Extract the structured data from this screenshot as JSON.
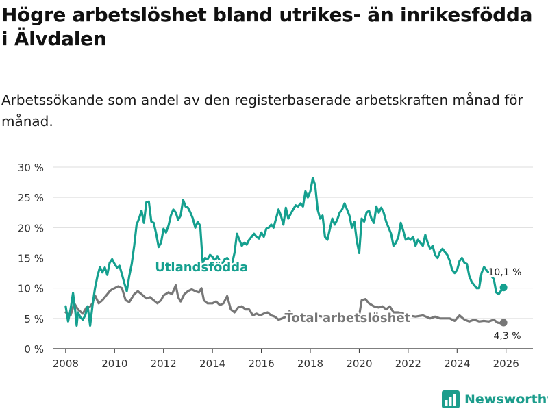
{
  "title": "Högre arbetslöshet bland utrikes- än inrikesfödda i Älvdalen",
  "subtitle": "Arbetssökande som andel av den registerbaserade arbetskraften månad för månad.",
  "brand": "Newsworthy",
  "colors": {
    "foreign": "#15a08f",
    "total": "#777777",
    "grid": "#dddddd",
    "axis": "#333333"
  },
  "chart_data": {
    "type": "line",
    "title": "Högre arbetslöshet bland utrikes- än inrikesfödda i Älvdalen",
    "xlabel": "",
    "ylabel": "",
    "xlim": [
      2007.5,
      2027.1
    ],
    "ylim": [
      0,
      30
    ],
    "y_ticks": [
      0,
      5,
      10,
      15,
      20,
      25,
      30
    ],
    "y_tick_labels": [
      "0 %",
      "5 %",
      "10 %",
      "15 %",
      "20 %",
      "25 %",
      "30 %"
    ],
    "x_ticks": [
      2008,
      2010,
      2012,
      2014,
      2016,
      2018,
      2020,
      2022,
      2024,
      2026
    ],
    "x_tick_labels": [
      "2008",
      "2010",
      "2012",
      "2014",
      "2016",
      "2018",
      "2020",
      "2022",
      "2024",
      "2026"
    ],
    "grid": true,
    "series": [
      {
        "name": "Utlandsfödda",
        "label": "Utlandsfödda",
        "end_label": "10,1 %",
        "end_value": 10.1,
        "points": [
          [
            2008.0,
            7.0
          ],
          [
            2008.1,
            4.5
          ],
          [
            2008.2,
            6.5
          ],
          [
            2008.3,
            9.2
          ],
          [
            2008.4,
            6.0
          ],
          [
            2008.45,
            3.8
          ],
          [
            2008.5,
            6.0
          ],
          [
            2008.6,
            5.2
          ],
          [
            2008.7,
            4.8
          ],
          [
            2008.8,
            5.5
          ],
          [
            2008.9,
            7.0
          ],
          [
            2009.0,
            3.8
          ],
          [
            2009.1,
            7.2
          ],
          [
            2009.2,
            10.0
          ],
          [
            2009.3,
            12.0
          ],
          [
            2009.4,
            13.5
          ],
          [
            2009.5,
            12.6
          ],
          [
            2009.6,
            13.4
          ],
          [
            2009.7,
            12.2
          ],
          [
            2009.8,
            14.2
          ],
          [
            2009.9,
            14.8
          ],
          [
            2010.0,
            14.0
          ],
          [
            2010.1,
            13.4
          ],
          [
            2010.2,
            13.7
          ],
          [
            2010.3,
            12.3
          ],
          [
            2010.4,
            10.8
          ],
          [
            2010.5,
            9.5
          ],
          [
            2010.6,
            12.0
          ],
          [
            2010.7,
            14.0
          ],
          [
            2010.8,
            17.0
          ],
          [
            2010.9,
            20.5
          ],
          [
            2011.0,
            21.5
          ],
          [
            2011.1,
            22.8
          ],
          [
            2011.2,
            20.8
          ],
          [
            2011.3,
            24.2
          ],
          [
            2011.4,
            24.3
          ],
          [
            2011.5,
            21.0
          ],
          [
            2011.6,
            20.8
          ],
          [
            2011.7,
            19.0
          ],
          [
            2011.8,
            16.8
          ],
          [
            2011.9,
            17.5
          ],
          [
            2012.0,
            19.8
          ],
          [
            2012.1,
            19.2
          ],
          [
            2012.2,
            20.3
          ],
          [
            2012.3,
            22.0
          ],
          [
            2012.4,
            23.0
          ],
          [
            2012.5,
            22.5
          ],
          [
            2012.6,
            21.3
          ],
          [
            2012.7,
            22.0
          ],
          [
            2012.8,
            24.6
          ],
          [
            2012.9,
            23.5
          ],
          [
            2013.0,
            23.3
          ],
          [
            2013.1,
            22.5
          ],
          [
            2013.2,
            21.5
          ],
          [
            2013.3,
            20.0
          ],
          [
            2013.4,
            21.0
          ],
          [
            2013.5,
            20.3
          ],
          [
            2013.6,
            14.2
          ],
          [
            2013.7,
            15.0
          ],
          [
            2013.8,
            14.8
          ],
          [
            2013.9,
            15.5
          ],
          [
            2014.0,
            15.2
          ],
          [
            2014.1,
            14.5
          ],
          [
            2014.2,
            15.3
          ],
          [
            2014.3,
            14.5
          ],
          [
            2014.4,
            14.0
          ],
          [
            2014.5,
            14.8
          ],
          [
            2014.6,
            15.0
          ],
          [
            2014.7,
            14.5
          ],
          [
            2014.8,
            14.0
          ],
          [
            2014.9,
            15.8
          ],
          [
            2015.0,
            19.0
          ],
          [
            2015.1,
            18.0
          ],
          [
            2015.2,
            17.0
          ],
          [
            2015.3,
            17.5
          ],
          [
            2015.4,
            17.2
          ],
          [
            2015.5,
            18.0
          ],
          [
            2015.6,
            18.5
          ],
          [
            2015.7,
            19.0
          ],
          [
            2015.8,
            18.5
          ],
          [
            2015.9,
            18.2
          ],
          [
            2016.0,
            19.2
          ],
          [
            2016.1,
            18.5
          ],
          [
            2016.2,
            19.8
          ],
          [
            2016.3,
            20.0
          ],
          [
            2016.4,
            20.5
          ],
          [
            2016.5,
            20.0
          ],
          [
            2016.6,
            21.5
          ],
          [
            2016.7,
            23.0
          ],
          [
            2016.8,
            22.0
          ],
          [
            2016.9,
            20.5
          ],
          [
            2017.0,
            23.3
          ],
          [
            2017.1,
            21.5
          ],
          [
            2017.2,
            22.3
          ],
          [
            2017.3,
            23.0
          ],
          [
            2017.4,
            23.7
          ],
          [
            2017.5,
            23.5
          ],
          [
            2017.6,
            24.0
          ],
          [
            2017.7,
            23.5
          ],
          [
            2017.8,
            26.0
          ],
          [
            2017.9,
            25.0
          ],
          [
            2018.0,
            26.0
          ],
          [
            2018.1,
            28.2
          ],
          [
            2018.2,
            27.0
          ],
          [
            2018.3,
            23.0
          ],
          [
            2018.4,
            21.5
          ],
          [
            2018.5,
            22.0
          ],
          [
            2018.6,
            18.5
          ],
          [
            2018.7,
            18.0
          ],
          [
            2018.8,
            19.8
          ],
          [
            2018.9,
            21.5
          ],
          [
            2019.0,
            20.5
          ],
          [
            2019.1,
            21.3
          ],
          [
            2019.2,
            22.5
          ],
          [
            2019.3,
            23.0
          ],
          [
            2019.4,
            24.0
          ],
          [
            2019.5,
            23.0
          ],
          [
            2019.6,
            22.0
          ],
          [
            2019.7,
            20.0
          ],
          [
            2019.8,
            21.0
          ],
          [
            2019.9,
            17.8
          ],
          [
            2020.0,
            15.8
          ],
          [
            2020.1,
            21.5
          ],
          [
            2020.2,
            21.0
          ],
          [
            2020.3,
            22.5
          ],
          [
            2020.4,
            22.8
          ],
          [
            2020.5,
            21.5
          ],
          [
            2020.6,
            20.8
          ],
          [
            2020.7,
            23.5
          ],
          [
            2020.8,
            22.5
          ],
          [
            2020.9,
            23.3
          ],
          [
            2021.0,
            22.5
          ],
          [
            2021.1,
            21.0
          ],
          [
            2021.2,
            20.0
          ],
          [
            2021.3,
            19.0
          ],
          [
            2021.4,
            17.0
          ],
          [
            2021.5,
            17.5
          ],
          [
            2021.6,
            18.5
          ],
          [
            2021.7,
            20.8
          ],
          [
            2021.8,
            19.5
          ],
          [
            2021.9,
            18.0
          ],
          [
            2022.0,
            18.3
          ],
          [
            2022.1,
            18.0
          ],
          [
            2022.2,
            18.5
          ],
          [
            2022.3,
            17.0
          ],
          [
            2022.4,
            18.0
          ],
          [
            2022.5,
            17.5
          ],
          [
            2022.6,
            17.0
          ],
          [
            2022.7,
            18.8
          ],
          [
            2022.8,
            17.5
          ],
          [
            2022.9,
            16.5
          ],
          [
            2023.0,
            17.0
          ],
          [
            2023.1,
            15.5
          ],
          [
            2023.2,
            15.0
          ],
          [
            2023.3,
            16.0
          ],
          [
            2023.4,
            16.5
          ],
          [
            2023.5,
            16.0
          ],
          [
            2023.6,
            15.5
          ],
          [
            2023.7,
            14.5
          ],
          [
            2023.8,
            13.0
          ],
          [
            2023.9,
            12.5
          ],
          [
            2024.0,
            13.0
          ],
          [
            2024.1,
            14.5
          ],
          [
            2024.2,
            15.0
          ],
          [
            2024.3,
            14.2
          ],
          [
            2024.4,
            14.0
          ],
          [
            2024.5,
            12.0
          ],
          [
            2024.6,
            11.0
          ],
          [
            2024.7,
            10.5
          ],
          [
            2024.8,
            10.0
          ],
          [
            2024.9,
            10.0
          ],
          [
            2025.0,
            12.5
          ],
          [
            2025.1,
            13.5
          ],
          [
            2025.2,
            13.0
          ],
          [
            2025.3,
            12.5
          ],
          [
            2025.4,
            12.0
          ],
          [
            2025.5,
            11.5
          ],
          [
            2025.6,
            9.3
          ],
          [
            2025.7,
            9.0
          ],
          [
            2025.8,
            9.6
          ],
          [
            2025.9,
            10.1
          ]
        ]
      },
      {
        "name": "Total arbetslöshet",
        "label": "Total arbetslöshet",
        "end_label": "4,3 %",
        "end_value": 4.3,
        "points": [
          [
            2008.0,
            6.0
          ],
          [
            2008.2,
            5.5
          ],
          [
            2008.35,
            7.5
          ],
          [
            2008.5,
            6.5
          ],
          [
            2008.7,
            5.8
          ],
          [
            2008.85,
            6.8
          ],
          [
            2009.0,
            7.0
          ],
          [
            2009.1,
            7.5
          ],
          [
            2009.2,
            8.8
          ],
          [
            2009.35,
            7.5
          ],
          [
            2009.5,
            8.0
          ],
          [
            2009.6,
            8.5
          ],
          [
            2009.7,
            9.0
          ],
          [
            2009.8,
            9.5
          ],
          [
            2009.9,
            9.8
          ],
          [
            2010.0,
            10.0
          ],
          [
            2010.15,
            10.3
          ],
          [
            2010.3,
            10.0
          ],
          [
            2010.45,
            8.0
          ],
          [
            2010.6,
            7.7
          ],
          [
            2010.8,
            9.0
          ],
          [
            2010.95,
            9.5
          ],
          [
            2011.1,
            9.0
          ],
          [
            2011.3,
            8.3
          ],
          [
            2011.45,
            8.5
          ],
          [
            2011.6,
            8.0
          ],
          [
            2011.75,
            7.5
          ],
          [
            2011.9,
            8.0
          ],
          [
            2012.0,
            8.8
          ],
          [
            2012.2,
            9.3
          ],
          [
            2012.35,
            9.0
          ],
          [
            2012.5,
            10.5
          ],
          [
            2012.6,
            8.5
          ],
          [
            2012.7,
            7.8
          ],
          [
            2012.85,
            9.0
          ],
          [
            2013.0,
            9.5
          ],
          [
            2013.15,
            9.8
          ],
          [
            2013.3,
            9.5
          ],
          [
            2013.45,
            9.3
          ],
          [
            2013.55,
            10.0
          ],
          [
            2013.65,
            8.0
          ],
          [
            2013.8,
            7.5
          ],
          [
            2014.0,
            7.5
          ],
          [
            2014.15,
            7.8
          ],
          [
            2014.3,
            7.2
          ],
          [
            2014.45,
            7.5
          ],
          [
            2014.6,
            8.7
          ],
          [
            2014.75,
            6.5
          ],
          [
            2014.9,
            6.0
          ],
          [
            2015.05,
            6.8
          ],
          [
            2015.2,
            7.0
          ],
          [
            2015.35,
            6.5
          ],
          [
            2015.5,
            6.5
          ],
          [
            2015.65,
            5.5
          ],
          [
            2015.8,
            5.8
          ],
          [
            2015.95,
            5.5
          ],
          [
            2016.1,
            5.8
          ],
          [
            2016.25,
            6.0
          ],
          [
            2016.4,
            5.5
          ],
          [
            2016.55,
            5.3
          ],
          [
            2016.7,
            4.8
          ],
          [
            2016.85,
            5.0
          ],
          [
            2017.0,
            5.3
          ],
          [
            2017.15,
            6.2
          ],
          [
            2017.3,
            5.5
          ],
          [
            2017.45,
            5.0
          ],
          [
            2017.6,
            5.5
          ],
          [
            2017.8,
            5.5
          ],
          [
            2018.0,
            5.3
          ],
          [
            2018.2,
            5.5
          ],
          [
            2018.5,
            5.3
          ],
          [
            2018.8,
            5.5
          ],
          [
            2019.0,
            5.3
          ],
          [
            2019.3,
            5.5
          ],
          [
            2019.6,
            5.2
          ],
          [
            2019.9,
            5.5
          ],
          [
            2020.0,
            5.5
          ],
          [
            2020.1,
            8.0
          ],
          [
            2020.25,
            8.2
          ],
          [
            2020.4,
            7.5
          ],
          [
            2020.6,
            7.0
          ],
          [
            2020.8,
            6.8
          ],
          [
            2020.95,
            7.0
          ],
          [
            2021.1,
            6.5
          ],
          [
            2021.25,
            7.0
          ],
          [
            2021.4,
            6.0
          ],
          [
            2021.6,
            6.0
          ],
          [
            2021.8,
            5.8
          ],
          [
            2022.0,
            5.5
          ],
          [
            2022.3,
            5.3
          ],
          [
            2022.6,
            5.5
          ],
          [
            2022.9,
            5.0
          ],
          [
            2023.1,
            5.3
          ],
          [
            2023.3,
            5.0
          ],
          [
            2023.5,
            5.0
          ],
          [
            2023.7,
            5.0
          ],
          [
            2023.9,
            4.6
          ],
          [
            2024.1,
            5.5
          ],
          [
            2024.3,
            4.8
          ],
          [
            2024.5,
            4.5
          ],
          [
            2024.7,
            4.8
          ],
          [
            2024.9,
            4.5
          ],
          [
            2025.1,
            4.6
          ],
          [
            2025.3,
            4.5
          ],
          [
            2025.5,
            4.8
          ],
          [
            2025.65,
            4.3
          ],
          [
            2025.8,
            4.2
          ],
          [
            2025.9,
            4.3
          ]
        ]
      }
    ]
  }
}
